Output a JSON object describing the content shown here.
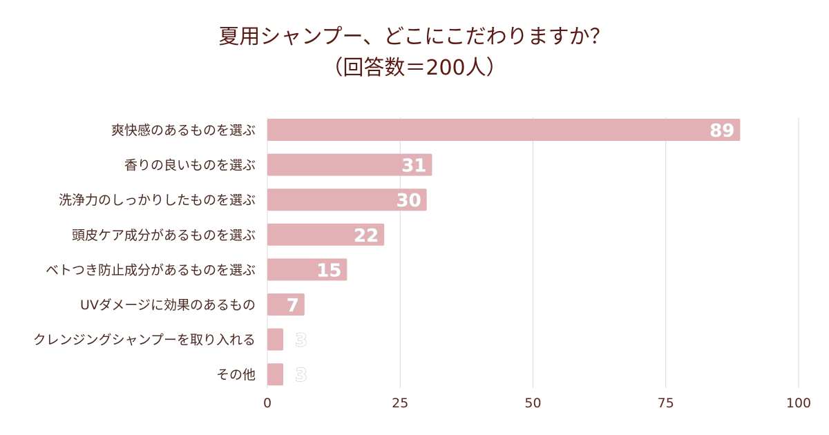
{
  "chart_data": {
    "type": "bar",
    "orientation": "horizontal",
    "title": [
      "夏用シャンプー、どこにこだわりますか？",
      "（回答数＝200人）"
    ],
    "categories": [
      "爽快感のあるものを選ぶ",
      "香りの良いものを選ぶ",
      "洗浄力のしっかりしたものを選ぶ",
      "頭皮ケア成分があるものを選ぶ",
      "ベトつき防止成分があるものを選ぶ",
      "UVダメージに効果のあるもの",
      "クレンジングシャンプーを取り入れる",
      "その他"
    ],
    "values": [
      89,
      31,
      30,
      22,
      15,
      7,
      3,
      3
    ],
    "xlim": [
      0,
      100
    ],
    "xticks": [
      0,
      25,
      50,
      75,
      100
    ],
    "grid": true,
    "legend": "none",
    "bar_color": "#e3b0b6"
  }
}
